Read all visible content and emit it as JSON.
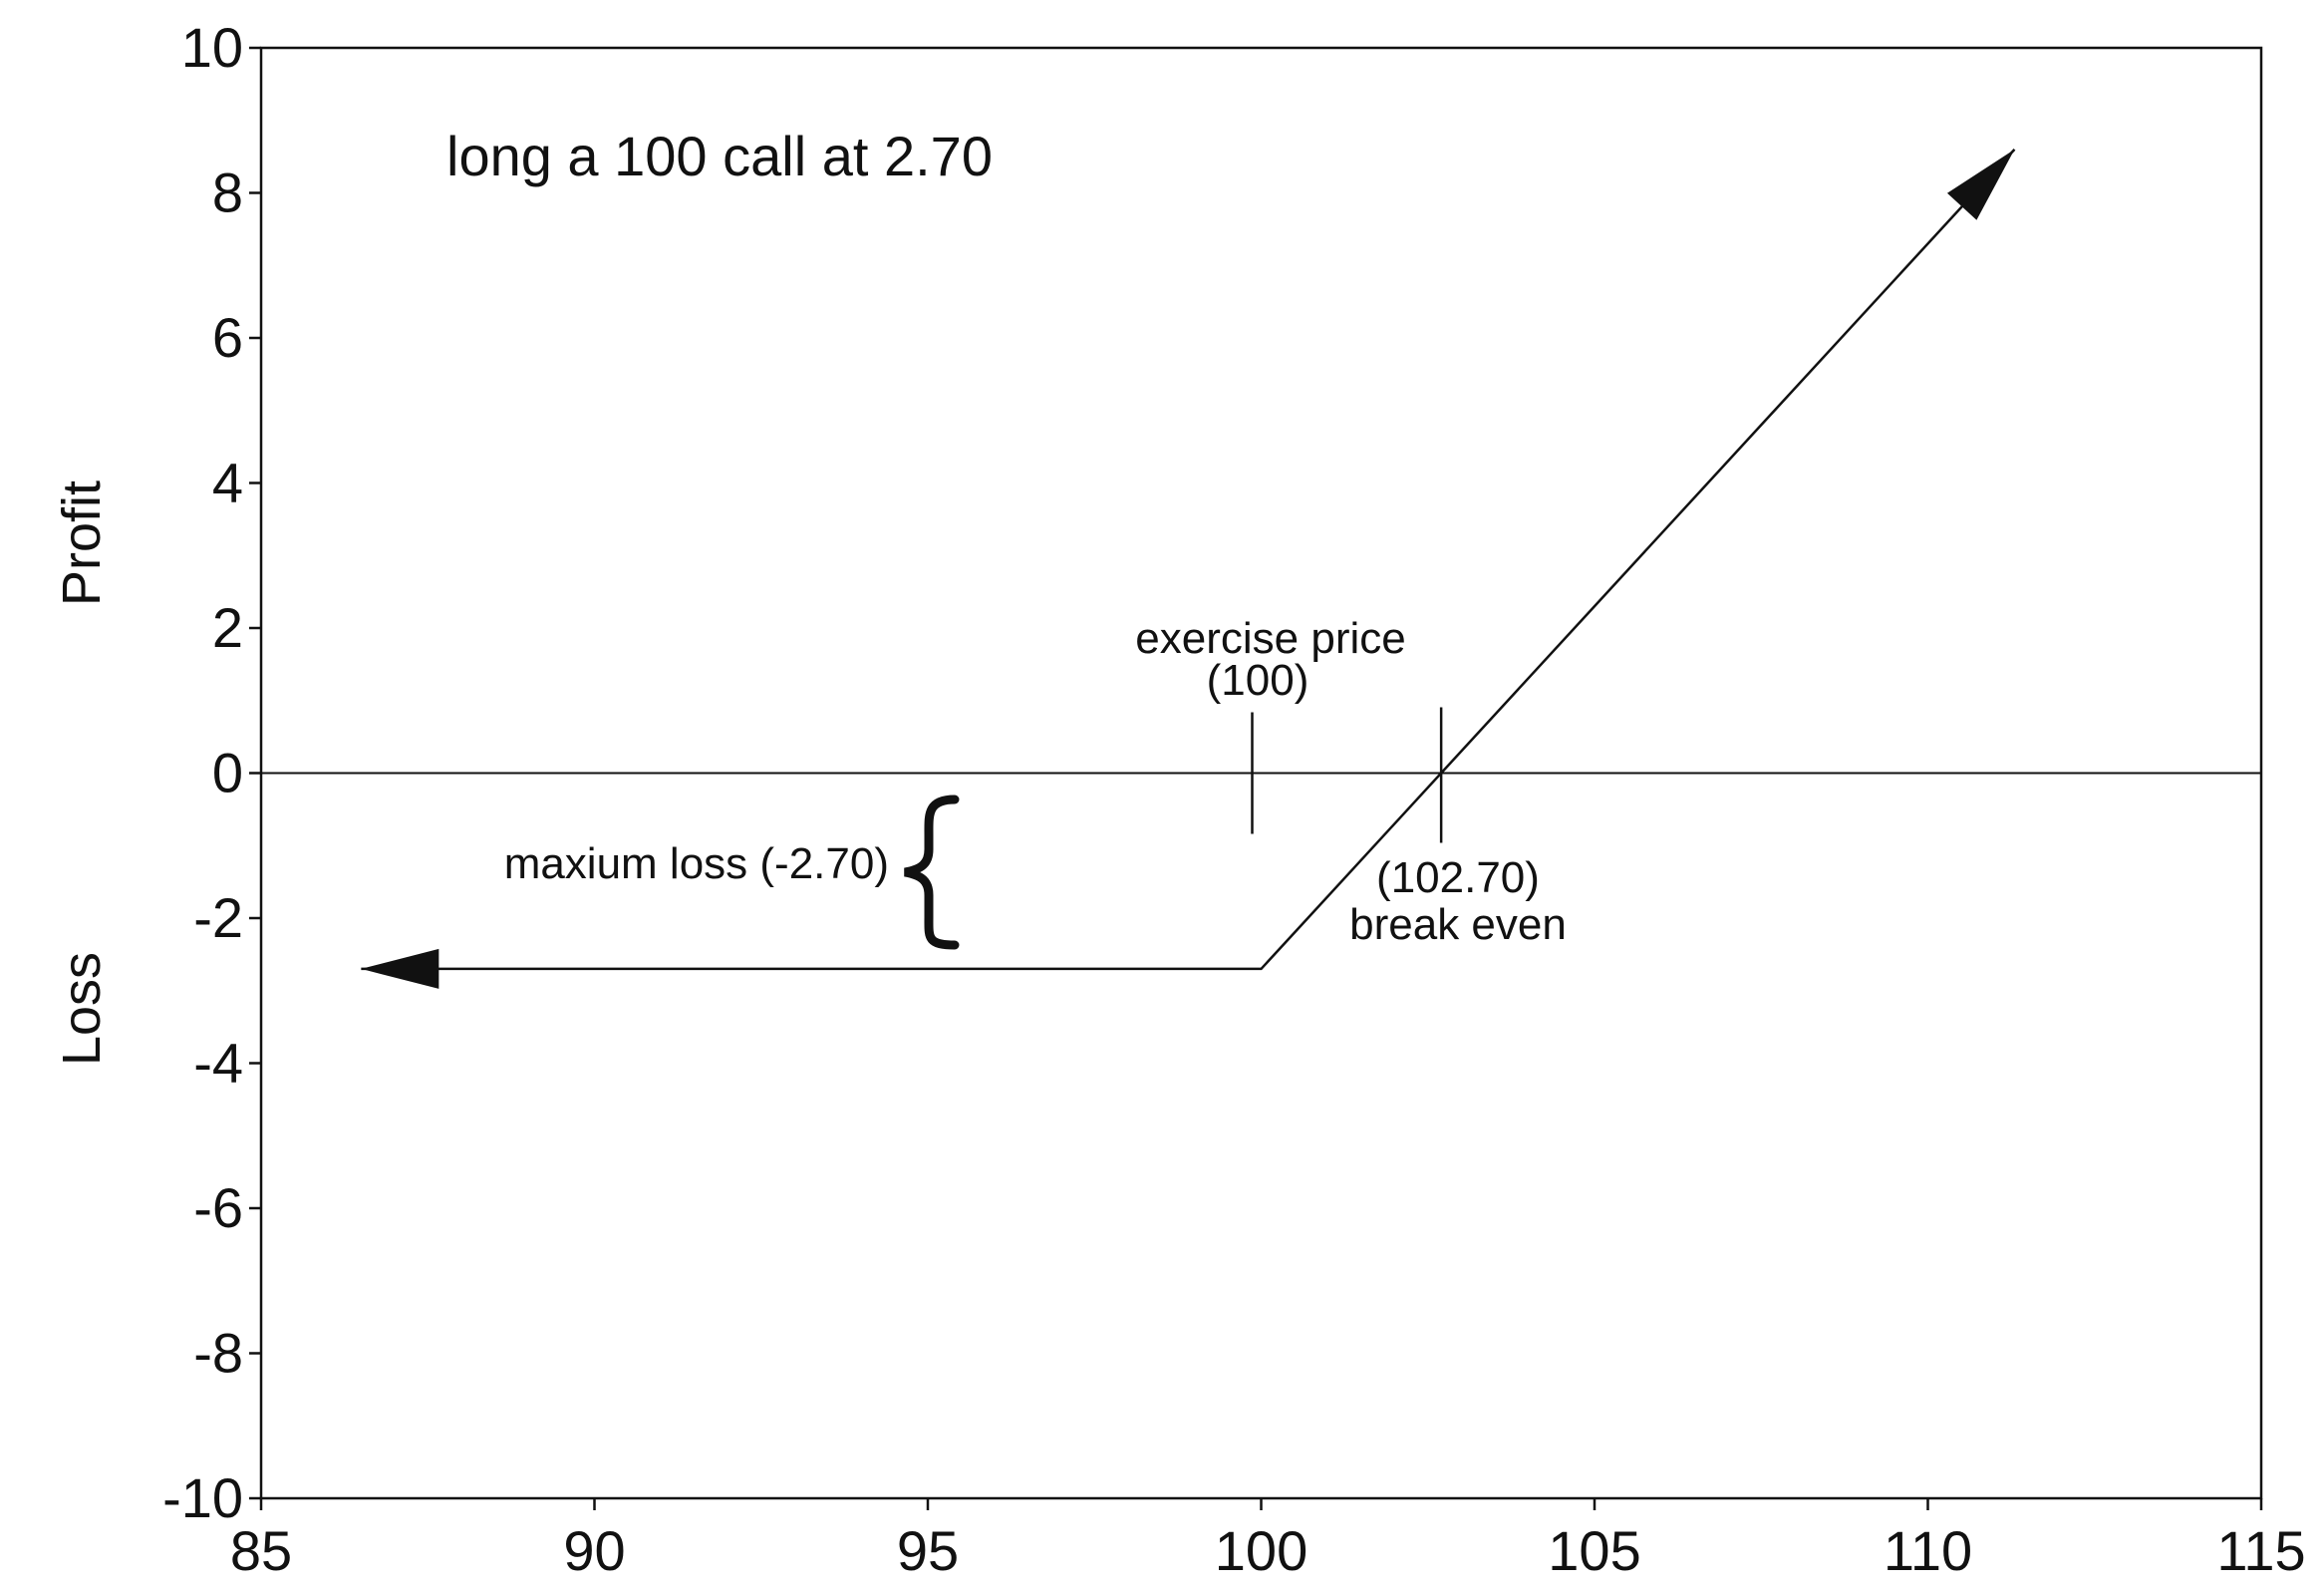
{
  "chart_data": {
    "type": "line",
    "title": "long a 100 call at 2.70",
    "xlim": [
      85,
      115
    ],
    "ylim": [
      -10,
      10
    ],
    "x_ticks": [
      "85",
      "90",
      "95",
      "100",
      "105",
      "110",
      "115"
    ],
    "y_ticks": [
      "10",
      "8",
      "6",
      "4",
      "2",
      "0",
      "-2",
      "-4",
      "-6",
      "-8",
      "-10"
    ],
    "ylabel_upper": "Profit",
    "ylabel_lower": "Loss",
    "grid": false,
    "series": [
      {
        "x": [
          86.5,
          100,
          111.3
        ],
        "y": [
          -2.7,
          -2.7,
          8.6
        ]
      }
    ],
    "exercise_price": 100,
    "break_even": 102.7,
    "max_loss": -2.7,
    "annotations": {
      "exercise_line1": "exercise price",
      "exercise_line2": "(100)",
      "breakeven_line1": "(102.70)",
      "breakeven_line2": "break even",
      "max_loss": "maxium loss (-2.70)"
    },
    "colors": {
      "line": "#111111",
      "axes": "#111111"
    }
  }
}
